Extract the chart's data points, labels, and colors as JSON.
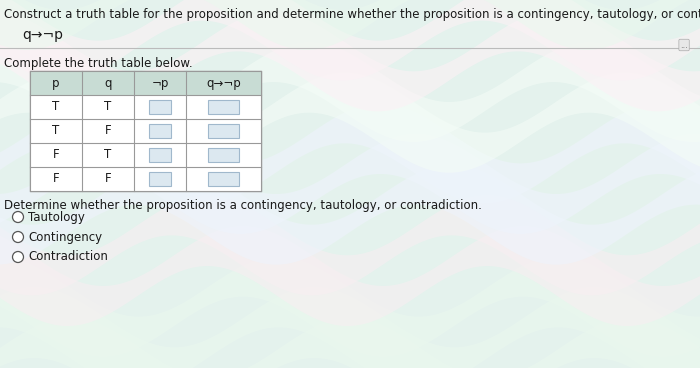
{
  "title_text": "Construct a truth table for the proposition and determine whether the proposition is a contingency, tautology, or contradiction.",
  "proposition": "q→¬p",
  "complete_text": "Complete the truth table below.",
  "determine_text": "Determine whether the proposition is a contingency, tautology, or contradiction.",
  "col_headers": [
    "p",
    "q",
    "¬p",
    "q→¬p"
  ],
  "rows": [
    [
      "T",
      "T",
      "",
      ""
    ],
    [
      "T",
      "F",
      "",
      ""
    ],
    [
      "F",
      "T",
      "",
      ""
    ],
    [
      "F",
      "F",
      "",
      ""
    ]
  ],
  "options": [
    "Tautology",
    "Contingency",
    "Contradiction"
  ],
  "bg_top_color": "#e8f0ec",
  "bg_bottom_color": "#e0ecf8",
  "table_bg": "#ffffff",
  "header_bg": "#c8dcd4",
  "input_box_color": "#dce8f0",
  "input_box_border": "#a0b8cc",
  "text_color": "#1a1a1a",
  "title_fontsize": 8.5,
  "body_fontsize": 8.5,
  "table_fontsize": 8.5,
  "separator_color": "#bbbbbb",
  "grid_color": "#999999",
  "radio_color": "#555555"
}
